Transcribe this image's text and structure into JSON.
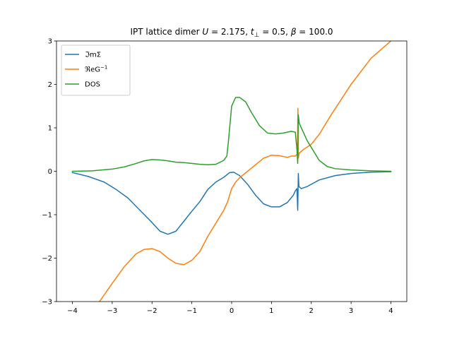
{
  "chart_data": {
    "type": "line",
    "title": "IPT lattice dimer U = 2.175, t⊥ = 0.5, β = 100.0",
    "title_parts": {
      "prefix": "IPT lattice dimer ",
      "U_sym": "U",
      "U_val": " = 2.175, ",
      "t_sym": "t",
      "t_sub": "⊥",
      "t_val": " = 0.5, ",
      "beta_sym": "β",
      "beta_val": " = 100.0"
    },
    "xlabel": "",
    "ylabel": "",
    "xlim": [
      -4.4,
      4.4
    ],
    "ylim": [
      -3,
      3
    ],
    "xticks": [
      -4,
      -3,
      -2,
      -1,
      0,
      1,
      2,
      3,
      4
    ],
    "xtick_labels": [
      "−4",
      "−3",
      "−2",
      "−1",
      "0",
      "1",
      "2",
      "3",
      "4"
    ],
    "yticks": [
      -3,
      -2,
      -1,
      0,
      1,
      2,
      3
    ],
    "ytick_labels": [
      "−3",
      "−2",
      "−1",
      "0",
      "1",
      "2",
      "3"
    ],
    "grid": false,
    "legend_position": "top-left",
    "series": [
      {
        "name": "ℑmΣ",
        "legend": {
          "base": "ℑmΣ",
          "sup": ""
        },
        "color": "#1f77b4",
        "points": [
          [
            -4.0,
            -0.03
          ],
          [
            -3.6,
            -0.12
          ],
          [
            -3.2,
            -0.25
          ],
          [
            -2.9,
            -0.42
          ],
          [
            -2.6,
            -0.62
          ],
          [
            -2.3,
            -0.9
          ],
          [
            -2.0,
            -1.18
          ],
          [
            -1.8,
            -1.38
          ],
          [
            -1.6,
            -1.45
          ],
          [
            -1.4,
            -1.38
          ],
          [
            -1.2,
            -1.15
          ],
          [
            -1.0,
            -0.92
          ],
          [
            -0.8,
            -0.7
          ],
          [
            -0.6,
            -0.42
          ],
          [
            -0.4,
            -0.25
          ],
          [
            -0.2,
            -0.14
          ],
          [
            -0.05,
            -0.03
          ],
          [
            0.05,
            -0.02
          ],
          [
            0.2,
            -0.1
          ],
          [
            0.4,
            -0.3
          ],
          [
            0.6,
            -0.55
          ],
          [
            0.8,
            -0.75
          ],
          [
            1.0,
            -0.82
          ],
          [
            1.2,
            -0.82
          ],
          [
            1.4,
            -0.72
          ],
          [
            1.55,
            -0.55
          ],
          [
            1.6,
            -0.45
          ],
          [
            1.64,
            -0.4
          ],
          [
            1.66,
            -0.9
          ],
          [
            1.675,
            -0.05
          ],
          [
            1.69,
            -0.35
          ],
          [
            1.75,
            -0.4
          ],
          [
            1.9,
            -0.35
          ],
          [
            2.2,
            -0.2
          ],
          [
            2.6,
            -0.1
          ],
          [
            3.0,
            -0.05
          ],
          [
            3.5,
            -0.02
          ],
          [
            4.0,
            -0.01
          ]
        ]
      },
      {
        "name": "ℜeG⁻¹",
        "legend": {
          "base": "ℜeG",
          "sup": "−1"
        },
        "color": "#ff7f0e",
        "points": [
          [
            -3.32,
            -3.0
          ],
          [
            -3.0,
            -2.58
          ],
          [
            -2.7,
            -2.2
          ],
          [
            -2.4,
            -1.9
          ],
          [
            -2.2,
            -1.8
          ],
          [
            -2.0,
            -1.78
          ],
          [
            -1.8,
            -1.85
          ],
          [
            -1.6,
            -2.0
          ],
          [
            -1.4,
            -2.12
          ],
          [
            -1.2,
            -2.15
          ],
          [
            -1.0,
            -2.05
          ],
          [
            -0.8,
            -1.85
          ],
          [
            -0.6,
            -1.5
          ],
          [
            -0.4,
            -1.2
          ],
          [
            -0.2,
            -0.9
          ],
          [
            -0.1,
            -0.7
          ],
          [
            0.0,
            -0.4
          ],
          [
            0.1,
            -0.25
          ],
          [
            0.2,
            -0.15
          ],
          [
            0.4,
            0.0
          ],
          [
            0.6,
            0.15
          ],
          [
            0.8,
            0.3
          ],
          [
            1.0,
            0.37
          ],
          [
            1.2,
            0.36
          ],
          [
            1.4,
            0.32
          ],
          [
            1.5,
            0.35
          ],
          [
            1.6,
            0.35
          ],
          [
            1.65,
            0.4
          ],
          [
            1.665,
            1.45
          ],
          [
            1.675,
            0.3
          ],
          [
            1.7,
            0.42
          ],
          [
            1.8,
            0.5
          ],
          [
            2.0,
            0.62
          ],
          [
            2.2,
            0.85
          ],
          [
            2.5,
            1.3
          ],
          [
            3.0,
            2.0
          ],
          [
            3.5,
            2.6
          ],
          [
            4.0,
            3.0
          ]
        ]
      },
      {
        "name": "DOS",
        "legend": {
          "base": "DOS",
          "sup": ""
        },
        "color": "#2ca02c",
        "points": [
          [
            -4.0,
            0.0
          ],
          [
            -3.5,
            0.01
          ],
          [
            -3.0,
            0.05
          ],
          [
            -2.7,
            0.1
          ],
          [
            -2.4,
            0.18
          ],
          [
            -2.2,
            0.24
          ],
          [
            -2.0,
            0.27
          ],
          [
            -1.8,
            0.26
          ],
          [
            -1.6,
            0.24
          ],
          [
            -1.4,
            0.21
          ],
          [
            -1.2,
            0.2
          ],
          [
            -1.0,
            0.18
          ],
          [
            -0.8,
            0.16
          ],
          [
            -0.6,
            0.15
          ],
          [
            -0.4,
            0.16
          ],
          [
            -0.2,
            0.25
          ],
          [
            -0.12,
            0.35
          ],
          [
            -0.08,
            0.7
          ],
          [
            0.0,
            1.5
          ],
          [
            0.1,
            1.7
          ],
          [
            0.2,
            1.7
          ],
          [
            0.35,
            1.6
          ],
          [
            0.5,
            1.35
          ],
          [
            0.7,
            1.05
          ],
          [
            0.9,
            0.88
          ],
          [
            1.1,
            0.86
          ],
          [
            1.3,
            0.88
          ],
          [
            1.5,
            0.92
          ],
          [
            1.6,
            0.9
          ],
          [
            1.64,
            0.5
          ],
          [
            1.66,
            0.18
          ],
          [
            1.675,
            1.3
          ],
          [
            1.7,
            1.1
          ],
          [
            1.8,
            0.9
          ],
          [
            1.9,
            0.7
          ],
          [
            2.0,
            0.55
          ],
          [
            2.2,
            0.25
          ],
          [
            2.4,
            0.11
          ],
          [
            2.6,
            0.06
          ],
          [
            3.0,
            0.03
          ],
          [
            3.5,
            0.01
          ],
          [
            4.0,
            0.0
          ]
        ]
      }
    ]
  }
}
